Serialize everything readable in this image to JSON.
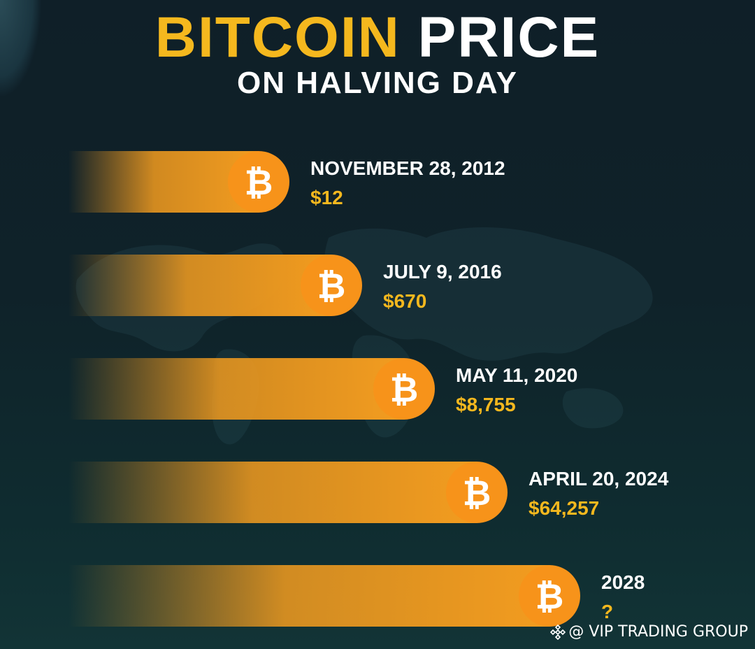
{
  "header": {
    "title_part1": "BITCOIN",
    "title_part2": "PRICE",
    "subtitle": "ON HALVING DAY"
  },
  "chart_data": {
    "type": "bar",
    "orientation": "horizontal",
    "title": "BITCOIN PRICE",
    "subtitle": "ON HALVING DAY",
    "categories": [
      "NOVEMBER 28, 2012",
      "JULY 9, 2016",
      "MAY 11, 2020",
      "APRIL 20, 2024",
      "2028"
    ],
    "values": [
      12,
      670,
      8755,
      64257,
      null
    ],
    "value_labels": [
      "$12",
      "$670",
      "$8,755",
      "$64,257",
      "?"
    ],
    "coin_symbol": "₿",
    "colors": {
      "bar": "#f39c1f",
      "coin": "#f7931a",
      "price": "#f5b81e",
      "date": "#ffffff"
    }
  },
  "watermark": {
    "text": "@ VIP TRADING GROUP",
    "icon": "binance-diamond-icon"
  }
}
